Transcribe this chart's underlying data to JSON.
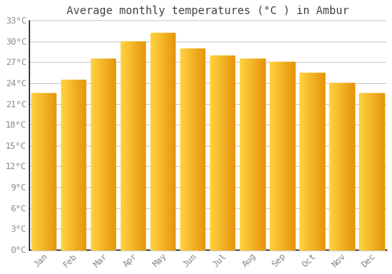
{
  "title": "Average monthly temperatures (°C ) in Ambur",
  "months": [
    "Jan",
    "Feb",
    "Mar",
    "Apr",
    "May",
    "Jun",
    "Jul",
    "Aug",
    "Sep",
    "Oct",
    "Nov",
    "Dec"
  ],
  "values": [
    22.5,
    24.5,
    27.5,
    30.0,
    31.2,
    29.0,
    28.0,
    27.5,
    27.0,
    25.5,
    24.0,
    22.5
  ],
  "bar_color_left": "#FFCC33",
  "bar_color_right": "#E8950A",
  "background_color": "#ffffff",
  "grid_color": "#cccccc",
  "ylim": [
    0,
    33
  ],
  "yticks": [
    0,
    3,
    6,
    9,
    12,
    15,
    18,
    21,
    24,
    27,
    30,
    33
  ],
  "title_fontsize": 10,
  "tick_fontsize": 8,
  "tick_color": "#888888",
  "title_color": "#444444"
}
